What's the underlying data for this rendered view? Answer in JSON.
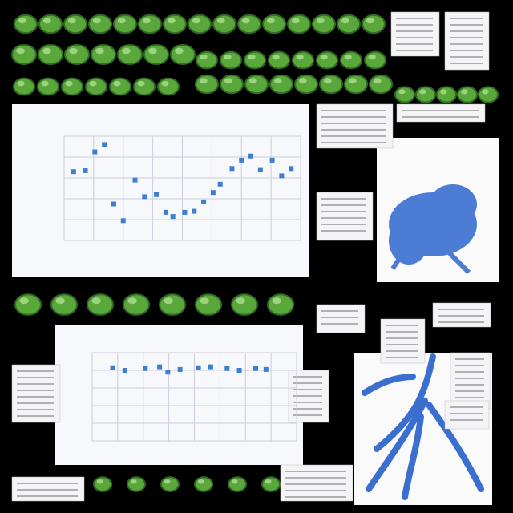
{
  "charts": [
    {
      "type": "scatter",
      "x": [
        0.04,
        0.09,
        0.13,
        0.17,
        0.21,
        0.25,
        0.3,
        0.34,
        0.39,
        0.43,
        0.46,
        0.51,
        0.55,
        0.59,
        0.63,
        0.66,
        0.71,
        0.75,
        0.79,
        0.83,
        0.88,
        0.92,
        0.96
      ],
      "values": [
        0.66,
        0.67,
        0.85,
        0.92,
        0.35,
        0.19,
        0.58,
        0.42,
        0.44,
        0.27,
        0.23,
        0.27,
        0.28,
        0.37,
        0.46,
        0.54,
        0.69,
        0.77,
        0.81,
        0.68,
        0.77,
        0.62,
        0.69
      ],
      "xlim": [
        0,
        1
      ],
      "ylim": [
        0,
        1
      ],
      "xticks": [
        0,
        0.125,
        0.25,
        0.375,
        0.5,
        0.625,
        0.75,
        0.875,
        1
      ],
      "yticks": [
        0,
        0.2,
        0.4,
        0.6,
        0.8,
        1
      ],
      "color": "#3d7fcf"
    },
    {
      "type": "scatter",
      "x": [
        0.1,
        0.16,
        0.26,
        0.33,
        0.37,
        0.43,
        0.52,
        0.58,
        0.66,
        0.72,
        0.8,
        0.85
      ],
      "values": [
        0.83,
        0.8,
        0.82,
        0.84,
        0.78,
        0.81,
        0.83,
        0.84,
        0.82,
        0.8,
        0.82,
        0.81
      ],
      "xlim": [
        0,
        1
      ],
      "ylim": [
        0,
        1
      ],
      "xticks": [
        0,
        0.125,
        0.25,
        0.375,
        0.5,
        0.625,
        0.75,
        0.875,
        1
      ],
      "yticks": [
        0,
        0.2,
        0.4,
        0.6,
        0.8,
        1
      ],
      "color": "#3d7fcf"
    }
  ]
}
